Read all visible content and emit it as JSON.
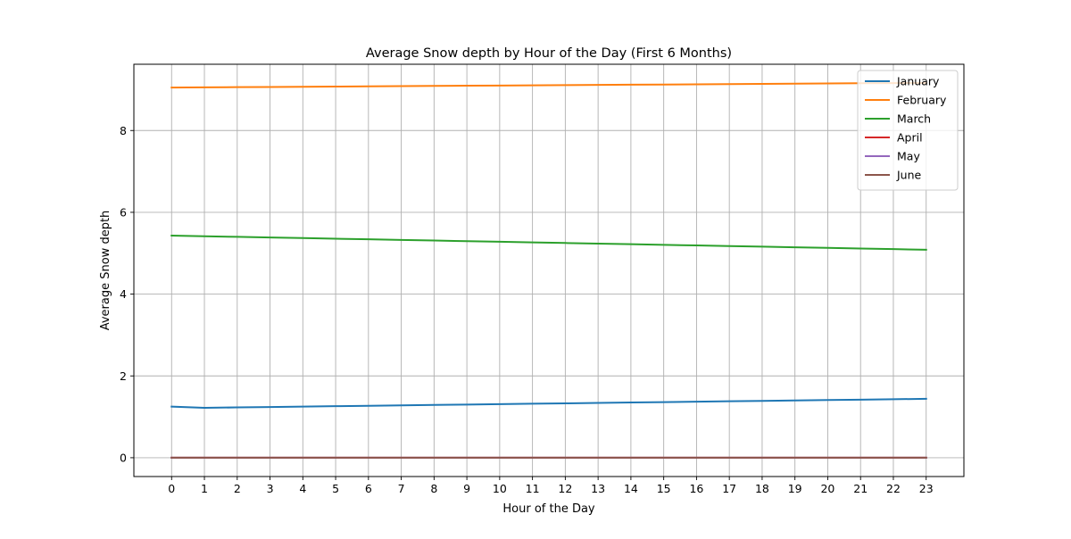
{
  "chart_data": {
    "type": "line",
    "title": "Average Snow depth by Hour of the Day (First 6 Months)",
    "xlabel": "Hour of the Day",
    "ylabel": "Average Snow depth",
    "x": [
      0,
      1,
      2,
      3,
      4,
      5,
      6,
      7,
      8,
      9,
      10,
      11,
      12,
      13,
      14,
      15,
      16,
      17,
      18,
      19,
      20,
      21,
      22,
      23
    ],
    "xlim": [
      -1.15,
      24.15
    ],
    "ylim": [
      -0.46,
      9.62
    ],
    "xticks": [
      0,
      1,
      2,
      3,
      4,
      5,
      6,
      7,
      8,
      9,
      10,
      11,
      12,
      13,
      14,
      15,
      16,
      17,
      18,
      19,
      20,
      21,
      22,
      23
    ],
    "yticks": [
      0,
      2,
      4,
      6,
      8
    ],
    "grid": true,
    "legend_position": "top-right",
    "series": [
      {
        "name": "January",
        "color": "#1f77b4",
        "values": [
          1.25,
          1.22,
          1.23,
          1.24,
          1.25,
          1.26,
          1.27,
          1.28,
          1.29,
          1.3,
          1.31,
          1.32,
          1.33,
          1.34,
          1.35,
          1.36,
          1.37,
          1.38,
          1.39,
          1.4,
          1.41,
          1.42,
          1.43,
          1.44
        ]
      },
      {
        "name": "February",
        "color": "#ff7f0e",
        "values": [
          9.05,
          9.055,
          9.06,
          9.065,
          9.07,
          9.075,
          9.08,
          9.085,
          9.09,
          9.095,
          9.1,
          9.105,
          9.11,
          9.115,
          9.12,
          9.125,
          9.13,
          9.135,
          9.14,
          9.145,
          9.15,
          9.155,
          9.16,
          9.165
        ]
      },
      {
        "name": "March",
        "color": "#2ca02c",
        "values": [
          5.43,
          5.415,
          5.4,
          5.385,
          5.37,
          5.355,
          5.34,
          5.325,
          5.31,
          5.295,
          5.28,
          5.265,
          5.25,
          5.235,
          5.22,
          5.205,
          5.19,
          5.175,
          5.16,
          5.145,
          5.13,
          5.115,
          5.1,
          5.085
        ]
      },
      {
        "name": "April",
        "color": "#d62728",
        "values": [
          0,
          0,
          0,
          0,
          0,
          0,
          0,
          0,
          0,
          0,
          0,
          0,
          0,
          0,
          0,
          0,
          0,
          0,
          0,
          0,
          0,
          0,
          0,
          0
        ]
      },
      {
        "name": "May",
        "color": "#9467bd",
        "values": [
          0,
          0,
          0,
          0,
          0,
          0,
          0,
          0,
          0,
          0,
          0,
          0,
          0,
          0,
          0,
          0,
          0,
          0,
          0,
          0,
          0,
          0,
          0,
          0
        ]
      },
      {
        "name": "June",
        "color": "#8c564b",
        "values": [
          0,
          0,
          0,
          0,
          0,
          0,
          0,
          0,
          0,
          0,
          0,
          0,
          0,
          0,
          0,
          0,
          0,
          0,
          0,
          0,
          0,
          0,
          0,
          0
        ]
      }
    ]
  }
}
